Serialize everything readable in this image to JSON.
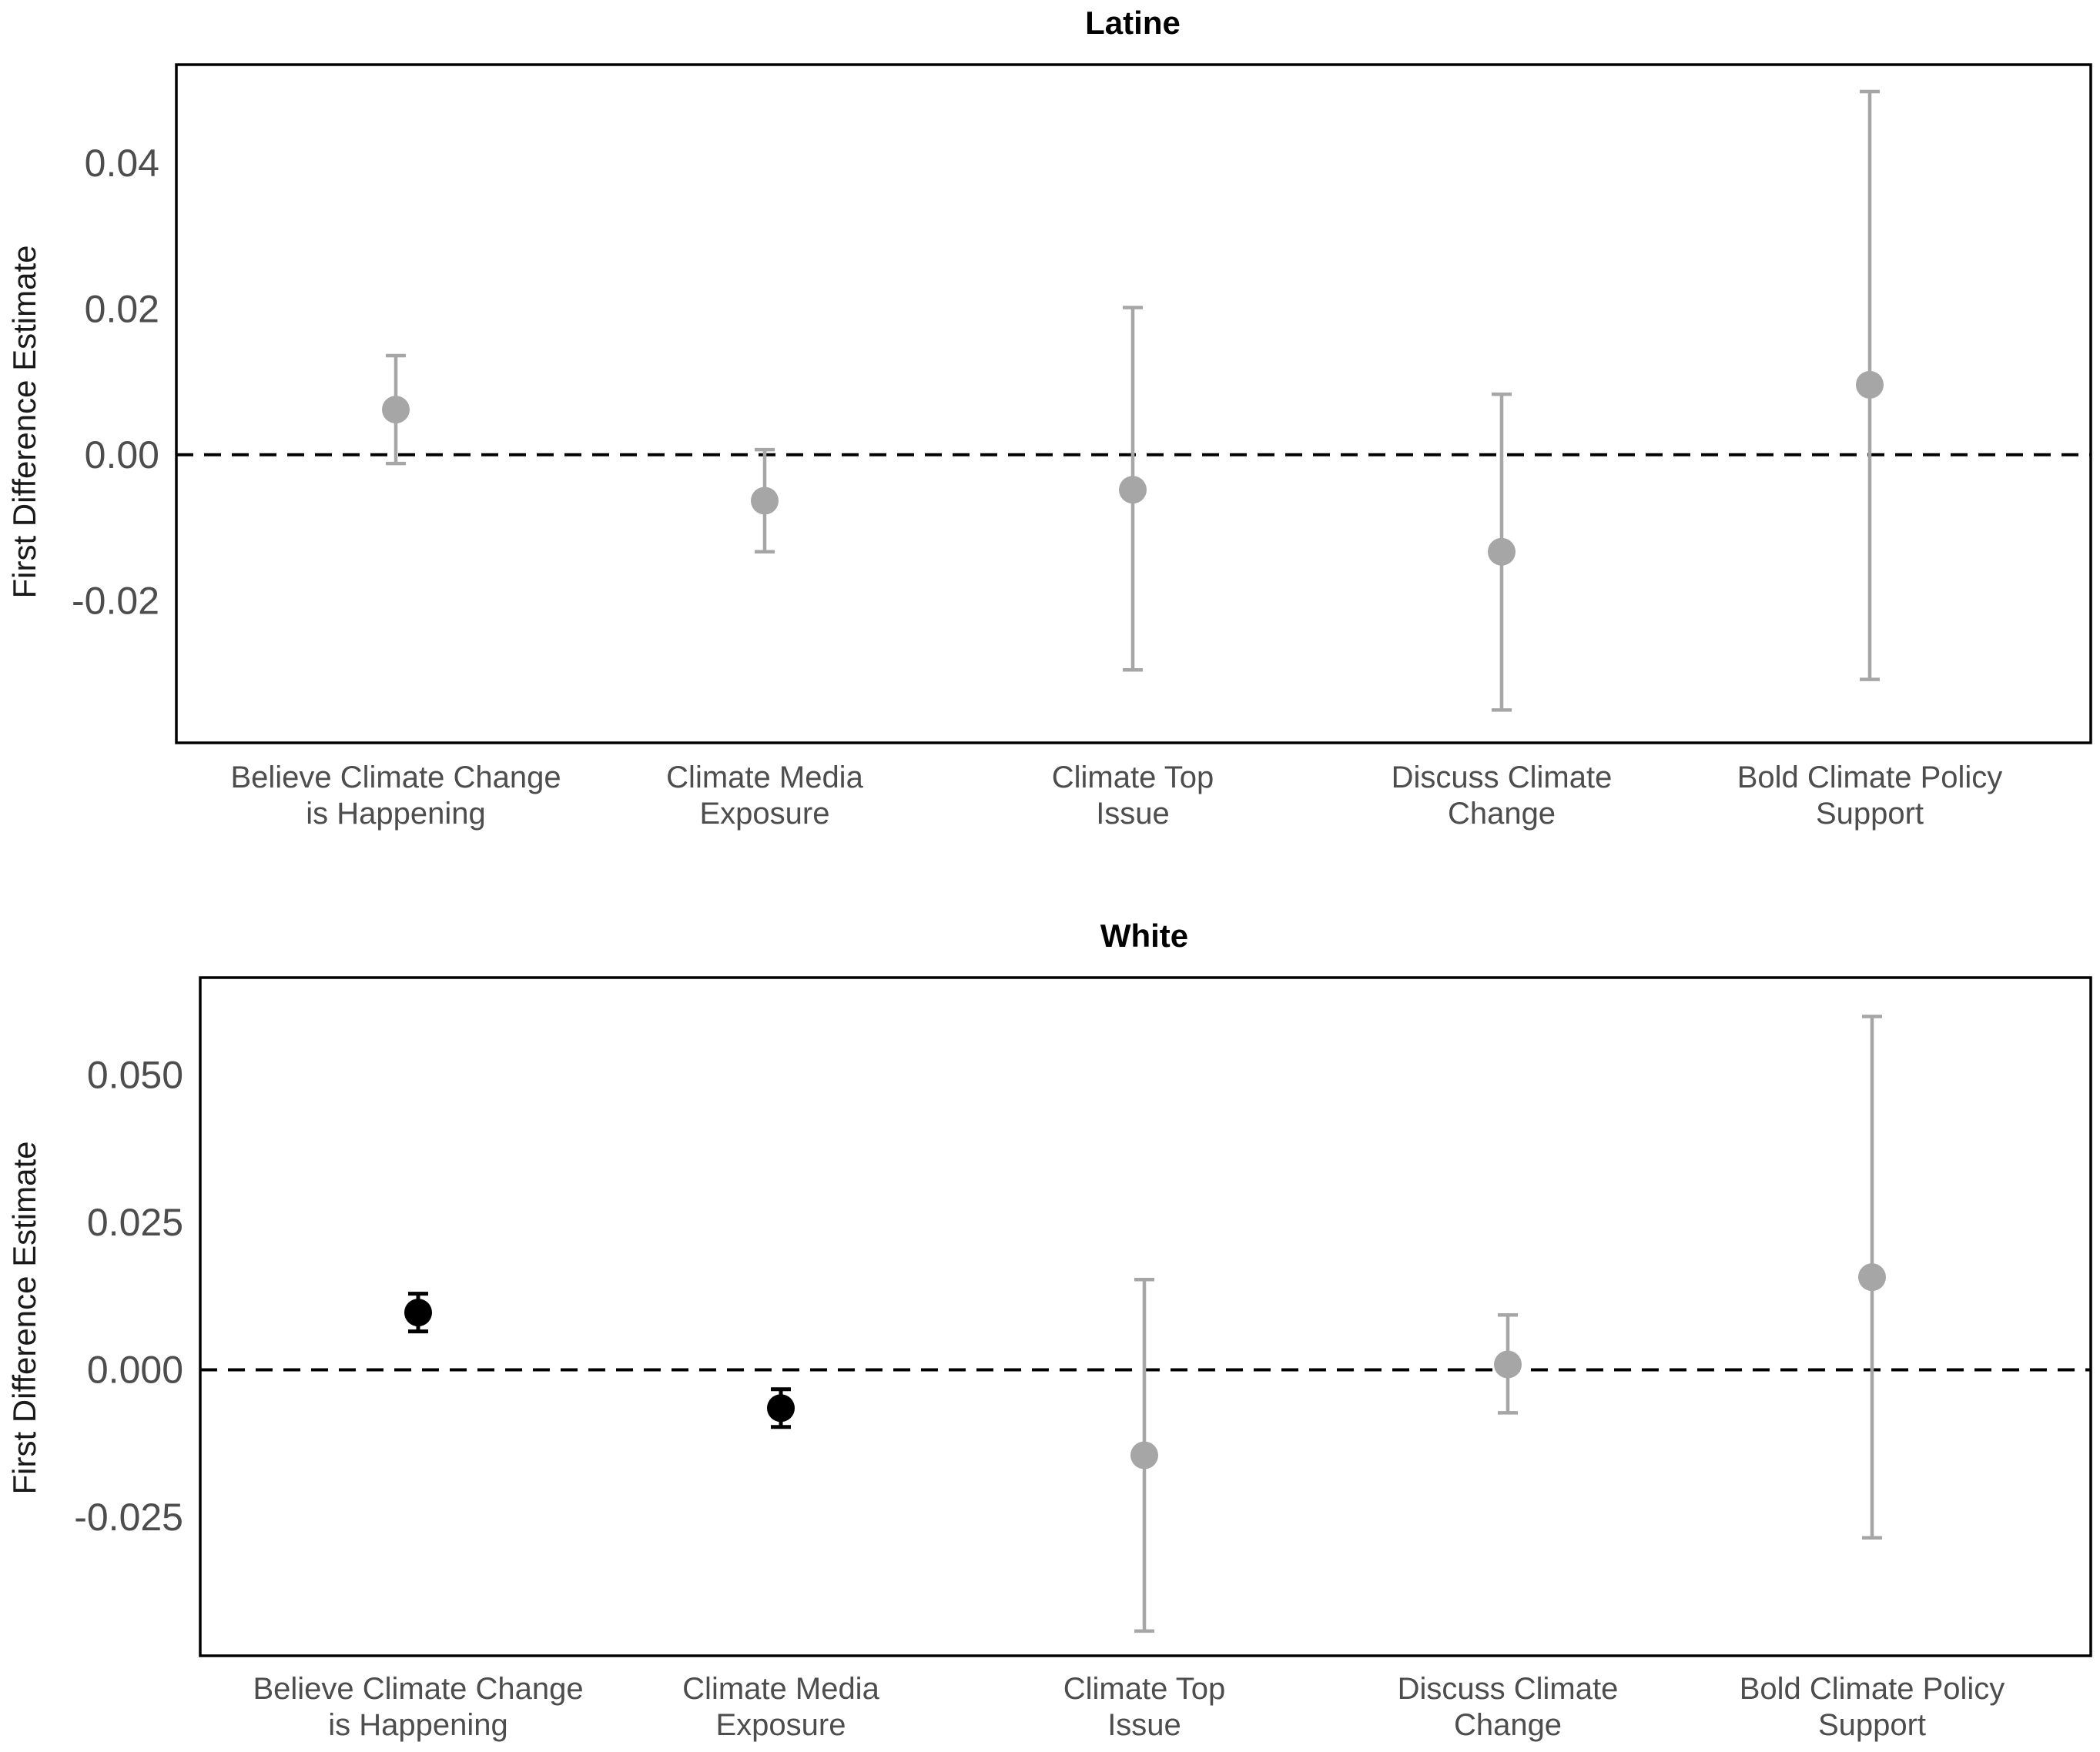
{
  "chart_data": [
    {
      "type": "errorbar",
      "title": "Latine",
      "ylabel": "First Difference Estimate",
      "xlabel": "",
      "ylim": [
        -0.0395,
        0.0535
      ],
      "yticks": [
        "0.04",
        "0.02",
        "0.00",
        "-0.02"
      ],
      "ytick_values": [
        0.04,
        0.02,
        0.0,
        -0.02
      ],
      "reference_line": 0,
      "categories": [
        [
          "Believe Climate Change",
          "is Happening"
        ],
        [
          "Climate Media",
          "Exposure"
        ],
        [
          "Climate Top",
          "Issue"
        ],
        [
          "Discuss Climate",
          "Change"
        ],
        [
          "Bold Climate Policy",
          "Support"
        ]
      ],
      "estimates": [
        0.0062,
        -0.0063,
        -0.0048,
        -0.0133,
        0.0096
      ],
      "ci_low": [
        -0.0012,
        -0.0133,
        -0.0295,
        -0.035,
        -0.0308
      ],
      "ci_high": [
        0.0136,
        0.0007,
        0.0202,
        0.0083,
        0.0498
      ],
      "significant": [
        false,
        false,
        false,
        false,
        false
      ]
    },
    {
      "type": "errorbar",
      "title": "White",
      "ylabel": "First Difference Estimate",
      "xlabel": "",
      "ylim": [
        -0.0485,
        0.0665
      ],
      "yticks": [
        "0.050",
        "0.025",
        "0.000",
        "-0.025"
      ],
      "ytick_values": [
        0.05,
        0.025,
        0.0,
        -0.025
      ],
      "reference_line": 0,
      "categories": [
        [
          "Believe Climate Change",
          "is Happening"
        ],
        [
          "Climate Media",
          "Exposure"
        ],
        [
          "Climate Top",
          "Issue"
        ],
        [
          "Discuss Climate",
          "Change"
        ],
        [
          "Bold Climate Policy",
          "Support"
        ]
      ],
      "estimates": [
        0.0097,
        -0.0065,
        -0.0145,
        0.0009,
        0.0157
      ],
      "ci_low": [
        0.0065,
        -0.0097,
        -0.0443,
        -0.0073,
        -0.0285
      ],
      "ci_high": [
        0.0129,
        -0.0033,
        0.0153,
        0.0093,
        0.0599
      ],
      "significant": [
        true,
        true,
        false,
        false,
        false
      ]
    }
  ],
  "colors": {
    "significant": "#000000",
    "not_significant": "#a6a6a6",
    "reference_line": "#000000",
    "panel_border": "#000000"
  }
}
